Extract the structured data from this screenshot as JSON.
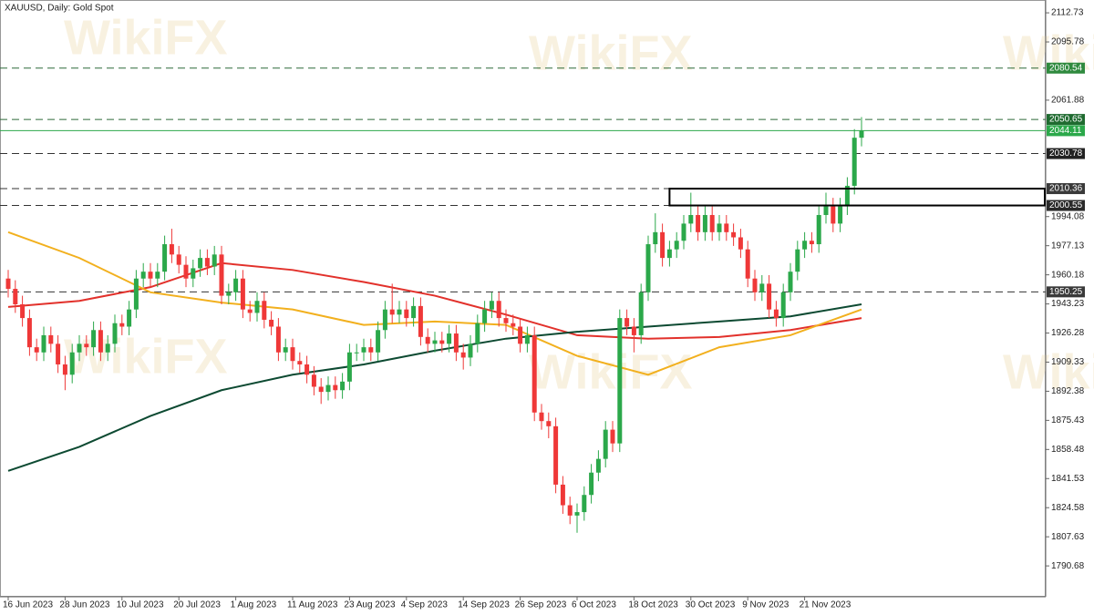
{
  "chart_data": {
    "type": "candlestick",
    "title": "XAUUSD, Daily:  Gold Spot",
    "watermark": "WikiFX",
    "up_color": "#2ba84a",
    "down_color": "#ef3838",
    "ylim": [
      1772.7,
      2120.2
    ],
    "yticks": [
      2112.73,
      2095.78,
      2061.88,
      1994.08,
      1977.13,
      1960.18,
      1943.23,
      1926.28,
      1909.33,
      1892.38,
      1875.43,
      1858.48,
      1841.53,
      1824.58,
      1807.63,
      1790.68
    ],
    "categories": [
      "16 Jun 2023",
      null,
      null,
      null,
      null,
      null,
      null,
      null,
      "28 Jun 2023",
      null,
      null,
      null,
      null,
      null,
      null,
      null,
      "10 Jul 2023",
      null,
      null,
      null,
      null,
      null,
      null,
      null,
      "20 Jul 2023",
      null,
      null,
      null,
      null,
      null,
      null,
      null,
      "1 Aug 2023",
      null,
      null,
      null,
      null,
      null,
      null,
      null,
      "11 Aug 2023",
      null,
      null,
      null,
      null,
      null,
      null,
      null,
      "23 Aug 2023",
      null,
      null,
      null,
      null,
      null,
      null,
      null,
      "4 Sep 2023",
      null,
      null,
      null,
      null,
      null,
      null,
      null,
      "14 Sep 2023",
      null,
      null,
      null,
      null,
      null,
      null,
      null,
      "26 Sep 2023",
      null,
      null,
      null,
      null,
      null,
      null,
      null,
      "6 Oct 2023",
      null,
      null,
      null,
      null,
      null,
      null,
      null,
      "18 Oct 2023",
      null,
      null,
      null,
      null,
      null,
      null,
      null,
      "30 Oct 2023",
      null,
      null,
      null,
      null,
      null,
      null,
      null,
      "9 Nov 2023",
      null,
      null,
      null,
      null,
      null,
      null,
      null,
      "21 Nov 2023",
      null,
      null,
      null,
      null,
      null,
      null,
      null,
      null
    ],
    "open": [
      1958,
      1952,
      1943,
      1935,
      1918,
      1915,
      1925,
      1920,
      1908,
      1902,
      1915,
      1920,
      1918,
      1928,
      1915,
      1920,
      1932,
      1930,
      1940,
      1958,
      1962,
      1958,
      1962,
      1978,
      1972,
      1966,
      1958,
      1964,
      1970,
      1965,
      1972,
      1948,
      1950,
      1958,
      1940,
      1938,
      1945,
      1934,
      1930,
      1915,
      1918,
      1910,
      1908,
      1902,
      1895,
      1892,
      1896,
      1893,
      1898,
      1915,
      1915,
      1918,
      1915,
      1928,
      1940,
      1937,
      1940,
      1935,
      1942,
      1924,
      1920,
      1922,
      1920,
      1926,
      1915,
      1912,
      1920,
      1932,
      1940,
      1945,
      1935,
      1932,
      1930,
      1920,
      1925,
      1880,
      1875,
      1872,
      1838,
      1826,
      1820,
      1822,
      1832,
      1845,
      1853,
      1870,
      1862,
      1935,
      1930,
      1925,
      1950,
      1978,
      1985,
      1970,
      1975,
      1980,
      1990,
      1995,
      1985,
      1995,
      1985,
      1990,
      1985,
      1982,
      1975,
      1958,
      1950,
      1955,
      1940,
      1935,
      1950,
      1962,
      1975,
      1980,
      1978,
      1995,
      2000,
      1990,
      2000,
      2012,
      2040
    ],
    "high": [
      1963,
      1957,
      1948,
      1940,
      1923,
      1930,
      1930,
      1925,
      1913,
      1920,
      1925,
      1925,
      1933,
      1933,
      1925,
      1937,
      1937,
      1945,
      1963,
      1967,
      1967,
      1967,
      1983,
      1987,
      1977,
      1971,
      1969,
      1975,
      1975,
      1977,
      1977,
      1955,
      1963,
      1963,
      1945,
      1950,
      1950,
      1939,
      1935,
      1923,
      1923,
      1915,
      1913,
      1907,
      1900,
      1901,
      1901,
      1903,
      1920,
      1920,
      1923,
      1923,
      1933,
      1945,
      1955,
      1945,
      1945,
      1947,
      1947,
      1929,
      1927,
      1927,
      1931,
      1931,
      1920,
      1925,
      1937,
      1945,
      1950,
      1950,
      1940,
      1937,
      1935,
      1930,
      1930,
      1885,
      1880,
      1877,
      1843,
      1831,
      1827,
      1837,
      1850,
      1858,
      1875,
      1875,
      1940,
      1940,
      1935,
      1955,
      1983,
      1996,
      1990,
      1980,
      1985,
      1995,
      2008,
      2000,
      2000,
      2000,
      1995,
      1995,
      1990,
      1987,
      1980,
      1963,
      1960,
      1960,
      1945,
      1955,
      1967,
      1980,
      1985,
      1985,
      2000,
      2008,
      2005,
      2005,
      2017,
      2045,
      2052
    ],
    "low": [
      1947,
      1938,
      1930,
      1913,
      1910,
      1910,
      1915,
      1903,
      1893,
      1897,
      1910,
      1913,
      1913,
      1910,
      1910,
      1915,
      1925,
      1925,
      1935,
      1953,
      1953,
      1953,
      1957,
      1967,
      1961,
      1953,
      1953,
      1959,
      1960,
      1960,
      1943,
      1943,
      1945,
      1935,
      1933,
      1933,
      1929,
      1925,
      1910,
      1910,
      1905,
      1903,
      1897,
      1890,
      1885,
      1887,
      1888,
      1888,
      1893,
      1910,
      1910,
      1910,
      1910,
      1923,
      1932,
      1932,
      1930,
      1930,
      1919,
      1915,
      1915,
      1915,
      1915,
      1910,
      1905,
      1907,
      1915,
      1927,
      1935,
      1930,
      1927,
      1925,
      1915,
      1915,
      1875,
      1870,
      1865,
      1833,
      1821,
      1815,
      1810,
      1817,
      1827,
      1840,
      1848,
      1857,
      1857,
      1925,
      1915,
      1920,
      1945,
      1973,
      1965,
      1965,
      1970,
      1975,
      1985,
      1980,
      1980,
      1980,
      1980,
      1980,
      1977,
      1970,
      1953,
      1945,
      1945,
      1935,
      1930,
      1930,
      1945,
      1957,
      1970,
      1973,
      1973,
      1990,
      1985,
      1985,
      1995,
      2007,
      2035
    ],
    "close": [
      1952,
      1943,
      1935,
      1918,
      1915,
      1925,
      1920,
      1908,
      1902,
      1915,
      1920,
      1918,
      1928,
      1915,
      1920,
      1932,
      1930,
      1940,
      1958,
      1962,
      1958,
      1962,
      1978,
      1972,
      1966,
      1958,
      1964,
      1970,
      1965,
      1972,
      1948,
      1950,
      1958,
      1940,
      1938,
      1945,
      1934,
      1930,
      1915,
      1918,
      1910,
      1908,
      1902,
      1895,
      1892,
      1896,
      1893,
      1898,
      1915,
      1915,
      1918,
      1915,
      1928,
      1940,
      1937,
      1940,
      1935,
      1942,
      1924,
      1920,
      1922,
      1920,
      1926,
      1915,
      1912,
      1920,
      1932,
      1940,
      1945,
      1935,
      1932,
      1930,
      1920,
      1925,
      1880,
      1875,
      1872,
      1838,
      1826,
      1820,
      1822,
      1832,
      1845,
      1853,
      1870,
      1862,
      1935,
      1930,
      1925,
      1950,
      1978,
      1985,
      1970,
      1975,
      1980,
      1990,
      1995,
      1985,
      1995,
      1985,
      1990,
      1985,
      1982,
      1975,
      1958,
      1950,
      1955,
      1940,
      1935,
      1950,
      1962,
      1975,
      1980,
      1978,
      1995,
      2000,
      1990,
      2000,
      2012,
      2040,
      2044
    ],
    "moving_averages": [
      {
        "color": "#e2312b",
        "x": [
          0,
          10,
          20,
          30,
          40,
          50,
          60,
          70,
          80,
          90,
          100,
          110,
          120
        ],
        "values": [
          1941.5,
          1945,
          1953,
          1967,
          1963,
          1956,
          1948,
          1937,
          1925,
          1923,
          1924,
          1928,
          1935
        ]
      },
      {
        "color": "#f2b01e",
        "x": [
          0,
          10,
          20,
          30,
          40,
          50,
          60,
          70,
          80,
          90,
          100,
          110,
          120
        ],
        "values": [
          1985,
          1970,
          1950,
          1944,
          1940,
          1931,
          1933,
          1931,
          1913,
          1902,
          1918,
          1925,
          1940
        ]
      },
      {
        "color": "#0d4a32",
        "x": [
          0,
          10,
          20,
          30,
          40,
          50,
          60,
          70,
          80,
          90,
          100,
          110,
          120
        ],
        "values": [
          1846,
          1860,
          1878,
          1893,
          1902,
          1908,
          1916,
          1923,
          1927,
          1930,
          1933,
          1936,
          1943
        ]
      }
    ],
    "levels": [
      {
        "value": 2080.54,
        "style": "dashed",
        "color": "#2f6b3a",
        "label_color": "#2f8a3e"
      },
      {
        "value": 2050.65,
        "style": "dashed",
        "color": "#2f6b3a",
        "label_color": "#1f6b30"
      },
      {
        "value": 2044.11,
        "style": "solid",
        "color": "#2ba84a",
        "label_color": "#2ba84a"
      },
      {
        "value": 2030.78,
        "style": "dashed",
        "color": "#333333",
        "label_color": "#222222"
      },
      {
        "value": 2010.36,
        "style": "dashed",
        "color": "#333333",
        "label_color": "#3a3a3a"
      },
      {
        "value": 2000.55,
        "style": "dashed",
        "color": "#333333",
        "label_color": "#2a2a2a"
      },
      {
        "value": 1950.25,
        "style": "dashed",
        "color": "#333333",
        "label_color": "#3a3a3a"
      }
    ],
    "zone": {
      "start": 93,
      "high": 2010.36,
      "low": 2000.55,
      "color": "#000000"
    }
  }
}
